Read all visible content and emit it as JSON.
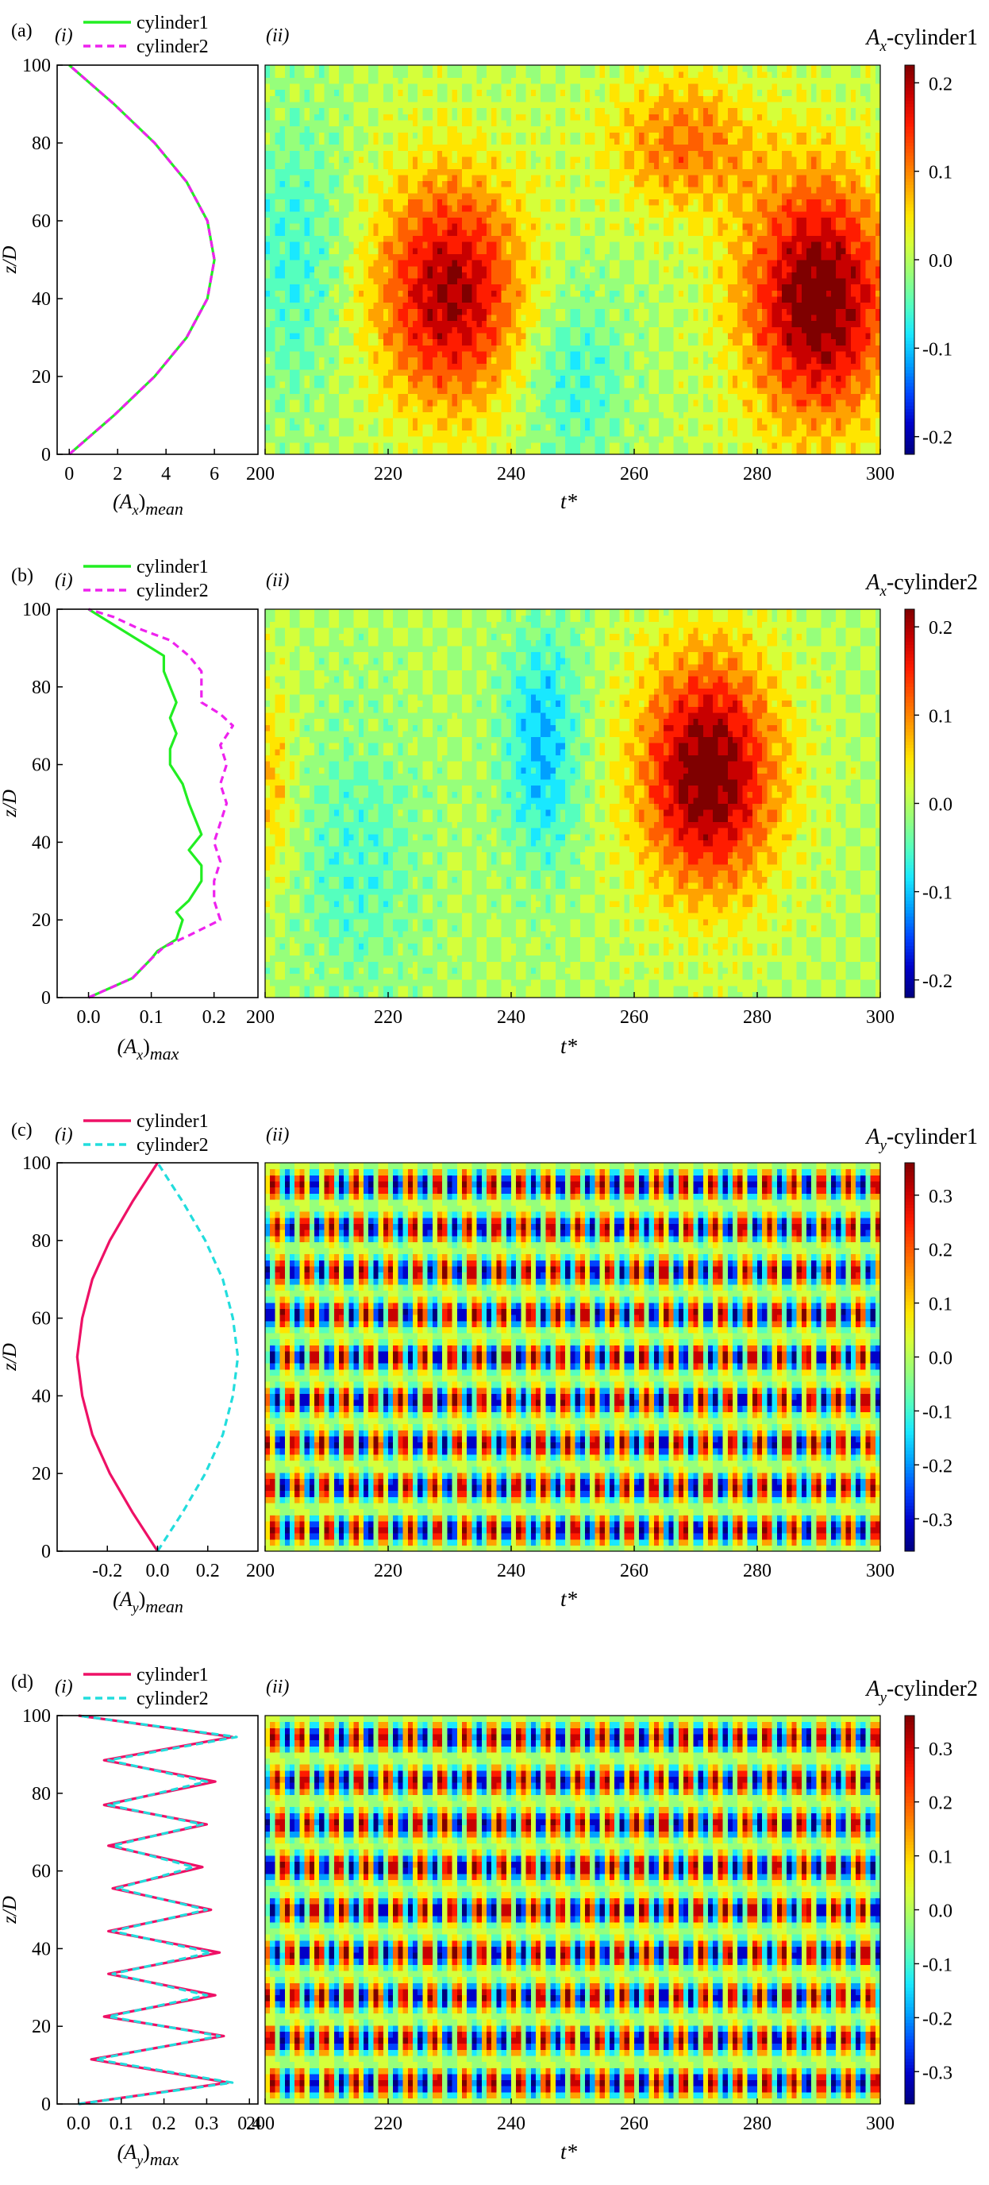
{
  "colormap": [
    "#00007f",
    "#0000c8",
    "#0044ff",
    "#00a0ff",
    "#19e8ff",
    "#55ffbe",
    "#96ff7b",
    "#d5ff3a",
    "#ffe500",
    "#ffa200",
    "#ff5f00",
    "#ff1c00",
    "#c80000",
    "#7f0000"
  ],
  "line_colors": {
    "green": "#22ee22",
    "magenta": "#ee22ee",
    "crimson": "#ee1166",
    "cyan": "#22dddd"
  },
  "chart_data": [
    {
      "type": "line",
      "panel": "(a)",
      "sub": "(i)",
      "xlabel": "(A_x)mean",
      "xlabel_base": "(A",
      "xlabel_sub": "x",
      "xlabel_tail": ")",
      "xlabel_tail_sub": "mean",
      "ylabel": "z/D",
      "xlim": [
        -0.5,
        7.8
      ],
      "ylim": [
        0,
        100
      ],
      "xticks": [
        0,
        2,
        4,
        6
      ],
      "xtick_labels": [
        "0",
        "2",
        "4",
        "6"
      ],
      "yticks": [
        0,
        20,
        40,
        60,
        80,
        100
      ],
      "ytick_labels": [
        "0",
        "20",
        "40",
        "60",
        "80",
        "100"
      ],
      "legend": [
        {
          "label": "cylinder1",
          "dash": "solid",
          "color": "green"
        },
        {
          "label": "cylinder2",
          "dash": "dashed",
          "color": "magenta"
        }
      ],
      "series": [
        {
          "name": "cylinder1",
          "color": "green",
          "dash": "solid",
          "z": [
            0,
            10,
            20,
            30,
            40,
            50,
            60,
            70,
            80,
            90,
            100
          ],
          "x": [
            0,
            1.85,
            3.53,
            4.85,
            5.71,
            6.0,
            5.71,
            4.85,
            3.53,
            1.85,
            0
          ]
        },
        {
          "name": "cylinder2",
          "color": "magenta",
          "dash": "dashed",
          "z": [
            0,
            10,
            20,
            30,
            40,
            50,
            60,
            70,
            80,
            90,
            100
          ],
          "x": [
            0,
            1.85,
            3.53,
            4.85,
            5.71,
            6.0,
            5.71,
            4.85,
            3.53,
            1.85,
            0
          ]
        }
      ]
    },
    {
      "type": "heatmap",
      "panel": "(a)",
      "sub": "(ii)",
      "title_base": "A",
      "title_sub": "x",
      "title_tail": "-cylinder1",
      "xlabel": "t*",
      "xlim": [
        200,
        300
      ],
      "ylim": [
        0,
        100
      ],
      "xticks": [
        200,
        220,
        240,
        260,
        280,
        300
      ],
      "xtick_labels": [
        "200",
        "220",
        "240",
        "260",
        "280",
        "300"
      ],
      "clim": [
        -0.22,
        0.22
      ],
      "cbar_ticks": [
        0.2,
        0.1,
        0.0,
        -0.1,
        -0.2
      ],
      "cbar_tick_labels": [
        "0.2",
        "0.1",
        "0.0",
        "-0.1",
        "-0.2"
      ],
      "pattern": "blobs",
      "blobs": [
        {
          "t": 230,
          "z": 42,
          "a": 0.19,
          "st": 12,
          "sz": 30
        },
        {
          "t": 290,
          "z": 40,
          "a": 0.22,
          "st": 12,
          "sz": 32
        },
        {
          "t": 268,
          "z": 80,
          "a": 0.1,
          "st": 12,
          "sz": 18
        },
        {
          "t": 250,
          "z": 20,
          "a": -0.06,
          "st": 8,
          "sz": 25
        },
        {
          "t": 205,
          "z": 50,
          "a": -0.06,
          "st": 8,
          "sz": 35
        }
      ],
      "ripple": 0.03
    },
    {
      "type": "line",
      "panel": "(b)",
      "sub": "(i)",
      "xlabel": "(A_x)max",
      "xlabel_base": "(A",
      "xlabel_sub": "x",
      "xlabel_tail": ")",
      "xlabel_tail_sub": "max",
      "ylabel": "z/D",
      "xlim": [
        -0.05,
        0.27
      ],
      "ylim": [
        0,
        100
      ],
      "xticks": [
        0.0,
        0.1,
        0.2
      ],
      "xtick_labels": [
        "0.0",
        "0.1",
        "0.2"
      ],
      "yticks": [
        0,
        20,
        40,
        60,
        80,
        100
      ],
      "ytick_labels": [
        "0",
        "20",
        "40",
        "60",
        "80",
        "100"
      ],
      "legend": [
        {
          "label": "cylinder1",
          "dash": "solid",
          "color": "green"
        },
        {
          "label": "cylinder2",
          "dash": "dashed",
          "color": "magenta"
        }
      ],
      "series": [
        {
          "name": "cylinder1",
          "color": "green",
          "dash": "solid",
          "z": [
            0,
            5,
            10,
            12,
            15,
            20,
            22,
            25,
            30,
            34,
            38,
            42,
            46,
            50,
            55,
            60,
            64,
            68,
            72,
            76,
            80,
            84,
            88,
            92,
            95,
            98,
            100
          ],
          "x": [
            0,
            0.07,
            0.1,
            0.11,
            0.14,
            0.15,
            0.14,
            0.16,
            0.18,
            0.18,
            0.16,
            0.18,
            0.17,
            0.16,
            0.15,
            0.13,
            0.13,
            0.14,
            0.13,
            0.14,
            0.13,
            0.12,
            0.12,
            0.08,
            0.05,
            0.02,
            0
          ]
        },
        {
          "name": "cylinder2",
          "color": "magenta",
          "dash": "dashed",
          "z": [
            0,
            5,
            10,
            13,
            16,
            20,
            25,
            30,
            35,
            40,
            45,
            50,
            55,
            60,
            65,
            70,
            73,
            76,
            80,
            84,
            88,
            92,
            95,
            98,
            100
          ],
          "x": [
            0,
            0.07,
            0.1,
            0.12,
            0.16,
            0.21,
            0.2,
            0.2,
            0.21,
            0.2,
            0.21,
            0.22,
            0.21,
            0.22,
            0.21,
            0.23,
            0.21,
            0.18,
            0.18,
            0.18,
            0.16,
            0.13,
            0.08,
            0.04,
            0
          ]
        }
      ]
    },
    {
      "type": "heatmap",
      "panel": "(b)",
      "sub": "(ii)",
      "title_base": "A",
      "title_sub": "x",
      "title_tail": "-cylinder2",
      "xlabel": "t*",
      "xlim": [
        200,
        300
      ],
      "ylim": [
        0,
        100
      ],
      "xticks": [
        200,
        220,
        240,
        260,
        280,
        300
      ],
      "xtick_labels": [
        "200",
        "220",
        "240",
        "260",
        "280",
        "300"
      ],
      "clim": [
        -0.22,
        0.22
      ],
      "cbar_ticks": [
        0.2,
        0.1,
        0.0,
        -0.1,
        -0.2
      ],
      "cbar_tick_labels": [
        "0.2",
        "0.1",
        "0.0",
        "-0.1",
        "-0.2"
      ],
      "pattern": "blobs",
      "blobs": [
        {
          "t": 272,
          "z": 58,
          "a": 0.22,
          "st": 11,
          "sz": 30
        },
        {
          "t": 245,
          "z": 65,
          "a": -0.1,
          "st": 6,
          "sz": 30
        },
        {
          "t": 215,
          "z": 35,
          "a": -0.05,
          "st": 10,
          "sz": 35
        },
        {
          "t": 201,
          "z": 55,
          "a": 0.06,
          "st": 4,
          "sz": 25
        }
      ],
      "ripple": 0.03
    },
    {
      "type": "line",
      "panel": "(c)",
      "sub": "(i)",
      "xlabel": "(A_y)mean",
      "xlabel_base": "(A",
      "xlabel_sub": "y",
      "xlabel_tail": ")",
      "xlabel_tail_sub": "mean",
      "ylabel": "z/D",
      "xlim": [
        -0.4,
        0.4
      ],
      "ylim": [
        0,
        100
      ],
      "xticks": [
        -0.2,
        0.0,
        0.2
      ],
      "xtick_labels": [
        "-0.2",
        "0.0",
        "0.2"
      ],
      "yticks": [
        0,
        20,
        40,
        60,
        80,
        100
      ],
      "ytick_labels": [
        "0",
        "20",
        "40",
        "60",
        "80",
        "100"
      ],
      "legend": [
        {
          "label": "cylinder1",
          "dash": "solid",
          "color": "crimson"
        },
        {
          "label": "cylinder2",
          "dash": "dashed",
          "color": "cyan"
        }
      ],
      "series": [
        {
          "name": "cylinder1",
          "color": "crimson",
          "dash": "solid",
          "z": [
            0,
            10,
            20,
            30,
            40,
            50,
            60,
            70,
            80,
            90,
            100
          ],
          "x": [
            0,
            -0.1,
            -0.19,
            -0.26,
            -0.3,
            -0.32,
            -0.3,
            -0.26,
            -0.19,
            -0.1,
            0
          ]
        },
        {
          "name": "cylinder2",
          "color": "cyan",
          "dash": "dashed",
          "z": [
            0,
            10,
            20,
            30,
            40,
            50,
            60,
            70,
            80,
            90,
            100
          ],
          "x": [
            0,
            0.1,
            0.19,
            0.26,
            0.3,
            0.32,
            0.3,
            0.26,
            0.19,
            0.1,
            0
          ]
        }
      ]
    },
    {
      "type": "heatmap",
      "panel": "(c)",
      "sub": "(ii)",
      "title_base": "A",
      "title_sub": "y",
      "title_tail": "-cylinder1",
      "xlabel": "t*",
      "xlim": [
        200,
        300
      ],
      "ylim": [
        0,
        100
      ],
      "xticks": [
        200,
        220,
        240,
        260,
        280,
        300
      ],
      "xtick_labels": [
        "200",
        "220",
        "240",
        "260",
        "280",
        "300"
      ],
      "clim": [
        -0.36,
        0.36
      ],
      "cbar_ticks": [
        0.3,
        0.2,
        0.1,
        0.0,
        -0.1,
        -0.2,
        -0.3
      ],
      "cbar_tick_labels": [
        "0.3",
        "0.2",
        "0.1",
        "0.0",
        "-0.1",
        "-0.2",
        "-0.3"
      ],
      "pattern": "wave",
      "wave_amp": 0.34,
      "period_t": 4.45,
      "rows": 9,
      "row_shift": 0.25
    },
    {
      "type": "line",
      "panel": "(d)",
      "sub": "(i)",
      "xlabel": "(A_y)max",
      "xlabel_base": "(A",
      "xlabel_sub": "y",
      "xlabel_tail": ")",
      "xlabel_tail_sub": "max",
      "ylabel": "z/D",
      "xlim": [
        -0.05,
        0.42
      ],
      "ylim": [
        0,
        100
      ],
      "xticks": [
        0.0,
        0.1,
        0.2,
        0.3,
        0.4
      ],
      "xtick_labels": [
        "0.0",
        "0.1",
        "0.2",
        "0.3",
        "0.4"
      ],
      "yticks": [
        0,
        20,
        40,
        60,
        80,
        100
      ],
      "ytick_labels": [
        "0",
        "20",
        "40",
        "60",
        "80",
        "100"
      ],
      "legend": [
        {
          "label": "cylinder1",
          "dash": "solid",
          "color": "crimson"
        },
        {
          "label": "cylinder2",
          "dash": "dashed",
          "color": "cyan"
        }
      ],
      "series": [
        {
          "name": "cylinder1",
          "color": "crimson",
          "dash": "solid",
          "z": [
            0,
            5.5,
            11.5,
            17.5,
            22.5,
            28,
            33.5,
            39,
            44.5,
            50,
            55.5,
            61,
            66.5,
            72,
            77,
            83,
            88.5,
            94.5,
            100
          ],
          "x": [
            0,
            0.35,
            0.03,
            0.34,
            0.06,
            0.32,
            0.07,
            0.33,
            0.07,
            0.31,
            0.08,
            0.29,
            0.07,
            0.3,
            0.06,
            0.32,
            0.06,
            0.36,
            0
          ]
        },
        {
          "name": "cylinder2",
          "color": "cyan",
          "dash": "dashed",
          "z": [
            0,
            5.5,
            11.5,
            17.5,
            22.5,
            28,
            33.5,
            39,
            44.5,
            50,
            55.5,
            61,
            66.5,
            72,
            77,
            83,
            88.5,
            94.5,
            100
          ],
          "x": [
            0,
            0.36,
            0.04,
            0.33,
            0.07,
            0.3,
            0.08,
            0.31,
            0.08,
            0.3,
            0.09,
            0.27,
            0.08,
            0.29,
            0.07,
            0.3,
            0.07,
            0.37,
            0
          ]
        }
      ]
    },
    {
      "type": "heatmap",
      "panel": "(d)",
      "sub": "(ii)",
      "title_base": "A",
      "title_sub": "y",
      "title_tail": "-cylinder2",
      "xlabel": "t*",
      "xlim": [
        200,
        300
      ],
      "ylim": [
        0,
        100
      ],
      "xticks": [
        200,
        220,
        240,
        260,
        280,
        300
      ],
      "xtick_labels": [
        "200",
        "220",
        "240",
        "260",
        "280",
        "300"
      ],
      "clim": [
        -0.36,
        0.36
      ],
      "cbar_ticks": [
        0.3,
        0.2,
        0.1,
        0.0,
        -0.1,
        -0.2,
        -0.3
      ],
      "cbar_tick_labels": [
        "0.3",
        "0.2",
        "0.1",
        "0.0",
        "-0.1",
        "-0.2",
        "-0.3"
      ],
      "pattern": "wave",
      "wave_amp": 0.34,
      "period_t": 4.45,
      "rows": 9,
      "row_shift": 0.25
    }
  ]
}
